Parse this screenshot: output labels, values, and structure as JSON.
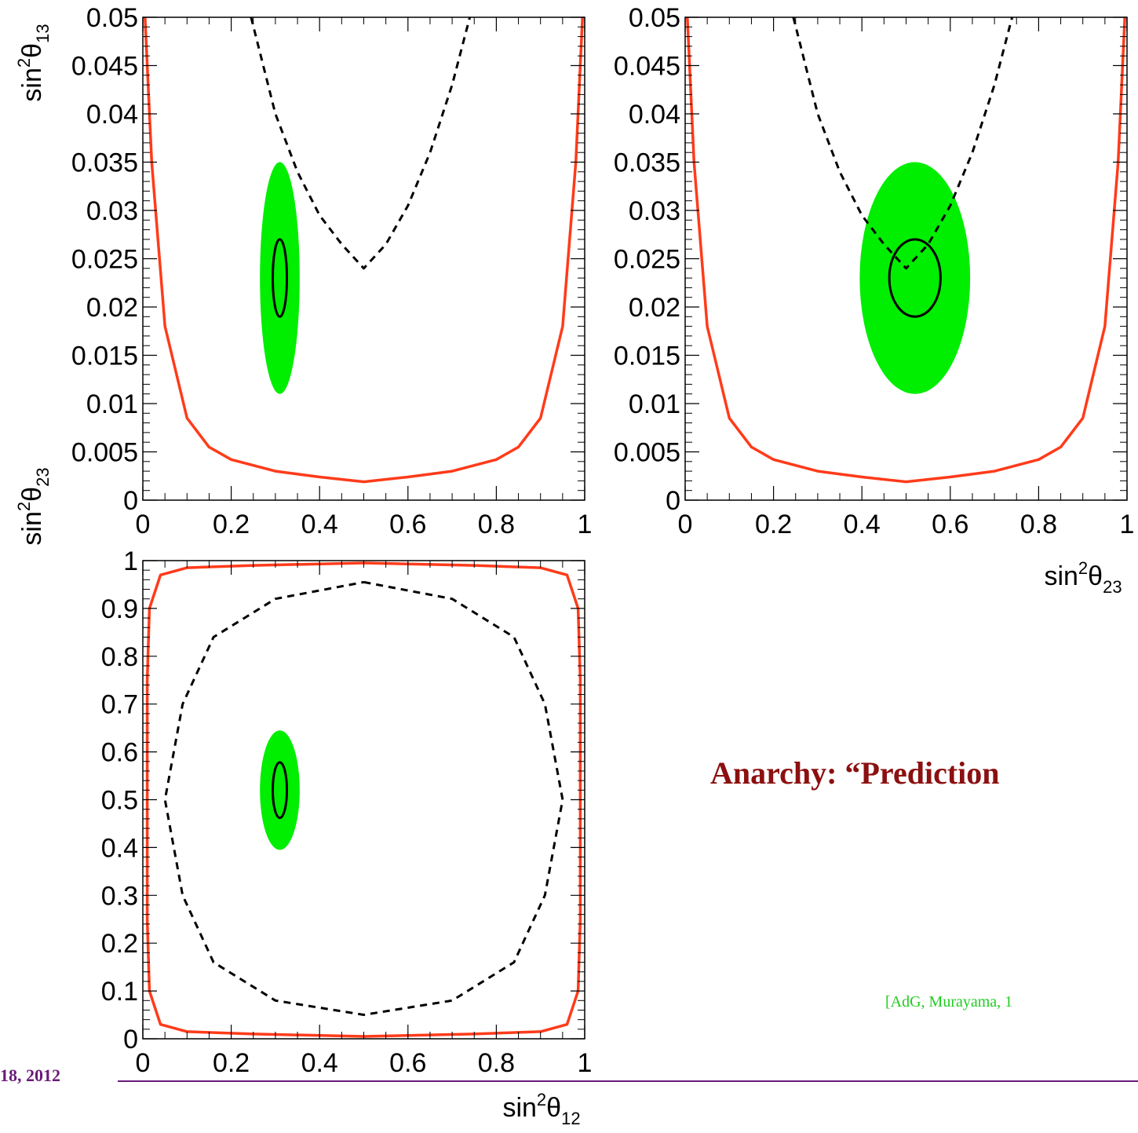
{
  "chart_data": [
    {
      "type": "line",
      "panel": "theta12-theta13",
      "xlabel": "",
      "ylabel": "sin²θ13",
      "xlim": [
        0,
        1
      ],
      "ylim": [
        0,
        0.05
      ],
      "xticks": [
        "0",
        "0.2",
        "0.4",
        "0.6",
        "0.8",
        "1"
      ],
      "yticks": [
        "0",
        "0.005",
        "0.01",
        "0.015",
        "0.02",
        "0.025",
        "0.03",
        "0.035",
        "0.04",
        "0.045",
        "0.05"
      ],
      "grid": false,
      "regions": [
        {
          "shape": "filled-ellipse",
          "color": "#00ee00",
          "center": [
            0.31,
            0.023
          ],
          "half_width": [
            0.045,
            0.012
          ]
        },
        {
          "shape": "ellipse",
          "color": "#000000",
          "center": [
            0.31,
            0.023
          ],
          "half_width": [
            0.016,
            0.004
          ]
        }
      ],
      "series": [
        {
          "style": "solid",
          "color": "#ff3b1a",
          "x": [
            0.005,
            0.02,
            0.05,
            0.1,
            0.15,
            0.2,
            0.3,
            0.4,
            0.5,
            0.6,
            0.7,
            0.8,
            0.85,
            0.9,
            0.95,
            0.98,
            0.995
          ],
          "y": [
            0.05,
            0.035,
            0.018,
            0.0085,
            0.0055,
            0.0042,
            0.003,
            0.0024,
            0.0019,
            0.0024,
            0.003,
            0.0042,
            0.0055,
            0.0085,
            0.018,
            0.035,
            0.05
          ]
        },
        {
          "style": "dashed",
          "color": "#000000",
          "x": [
            0.245,
            0.3,
            0.35,
            0.4,
            0.45,
            0.5,
            0.55,
            0.6,
            0.65,
            0.7,
            0.74
          ],
          "y": [
            0.05,
            0.04,
            0.034,
            0.0295,
            0.0265,
            0.024,
            0.0265,
            0.0305,
            0.036,
            0.043,
            0.05
          ]
        }
      ]
    },
    {
      "type": "line",
      "panel": "theta23-theta13",
      "xlabel": "sin²θ23",
      "ylabel": "",
      "xlim": [
        0,
        1
      ],
      "ylim": [
        0,
        0.05
      ],
      "xticks": [
        "0",
        "0.2",
        "0.4",
        "0.6",
        "0.8",
        "1"
      ],
      "yticks": [
        "0",
        "0.005",
        "0.01",
        "0.015",
        "0.02",
        "0.025",
        "0.03",
        "0.035",
        "0.04",
        "0.045",
        "0.05"
      ],
      "grid": false,
      "regions": [
        {
          "shape": "filled-ellipse",
          "color": "#00ee00",
          "center": [
            0.52,
            0.023
          ],
          "half_width": [
            0.125,
            0.012
          ]
        },
        {
          "shape": "ellipse",
          "color": "#000000",
          "center": [
            0.52,
            0.023
          ],
          "half_width": [
            0.058,
            0.004
          ]
        }
      ],
      "series": [
        {
          "style": "solid",
          "color": "#ff3b1a",
          "x": [
            0.005,
            0.02,
            0.05,
            0.1,
            0.15,
            0.2,
            0.3,
            0.4,
            0.5,
            0.6,
            0.7,
            0.8,
            0.85,
            0.9,
            0.95,
            0.98,
            0.995
          ],
          "y": [
            0.05,
            0.035,
            0.018,
            0.0085,
            0.0055,
            0.0042,
            0.003,
            0.0024,
            0.0019,
            0.0024,
            0.003,
            0.0042,
            0.0055,
            0.0085,
            0.018,
            0.035,
            0.05
          ]
        },
        {
          "style": "dashed",
          "color": "#000000",
          "x": [
            0.245,
            0.3,
            0.35,
            0.4,
            0.45,
            0.5,
            0.55,
            0.6,
            0.65,
            0.7,
            0.74
          ],
          "y": [
            0.05,
            0.04,
            0.034,
            0.0295,
            0.0265,
            0.024,
            0.0265,
            0.0305,
            0.036,
            0.043,
            0.05
          ]
        }
      ]
    },
    {
      "type": "line",
      "panel": "theta12-theta23",
      "xlabel": "sin²θ12",
      "ylabel": "sin²θ23",
      "xlim": [
        0,
        1
      ],
      "ylim": [
        0,
        1
      ],
      "xticks": [
        "0",
        "0.2",
        "0.4",
        "0.6",
        "0.8",
        "1"
      ],
      "yticks": [
        "0",
        "0.1",
        "0.2",
        "0.3",
        "0.4",
        "0.5",
        "0.6",
        "0.7",
        "0.8",
        "0.9",
        "1"
      ],
      "grid": false,
      "regions": [
        {
          "shape": "filled-ellipse",
          "color": "#00ee00",
          "center": [
            0.31,
            0.52
          ],
          "half_width": [
            0.045,
            0.125
          ]
        },
        {
          "shape": "ellipse",
          "color": "#000000",
          "center": [
            0.31,
            0.52
          ],
          "half_width": [
            0.016,
            0.058
          ]
        }
      ],
      "series": [
        {
          "style": "solid",
          "color": "#ff3b1a",
          "x": [
            0.5,
            0.75,
            0.9,
            0.96,
            0.985,
            0.99,
            0.99,
            0.99,
            0.985,
            0.96,
            0.9,
            0.75,
            0.5,
            0.25,
            0.1,
            0.04,
            0.015,
            0.01,
            0.01,
            0.01,
            0.015,
            0.04,
            0.1,
            0.25,
            0.5
          ],
          "y": [
            0.995,
            0.99,
            0.985,
            0.97,
            0.9,
            0.75,
            0.5,
            0.25,
            0.1,
            0.03,
            0.015,
            0.01,
            0.005,
            0.01,
            0.015,
            0.03,
            0.1,
            0.25,
            0.5,
            0.75,
            0.9,
            0.97,
            0.985,
            0.99,
            0.995
          ]
        },
        {
          "style": "dashed",
          "color": "#000000",
          "x": [
            0.5,
            0.7,
            0.84,
            0.91,
            0.95,
            0.91,
            0.84,
            0.7,
            0.5,
            0.3,
            0.16,
            0.09,
            0.05,
            0.09,
            0.16,
            0.3,
            0.5
          ],
          "y": [
            0.955,
            0.92,
            0.84,
            0.7,
            0.5,
            0.3,
            0.16,
            0.08,
            0.05,
            0.08,
            0.16,
            0.3,
            0.5,
            0.7,
            0.84,
            0.92,
            0.955
          ]
        }
      ]
    }
  ],
  "slide": {
    "title": "Anarchy: “Prediction",
    "citation": "[AdG, Murayama, 1",
    "footer_date": "18, 2012",
    "title_color": "#8b1010",
    "citation_color": "#22cc22",
    "footer_color": "#6a1a7a",
    "rule_color": "#6a1a7a"
  }
}
